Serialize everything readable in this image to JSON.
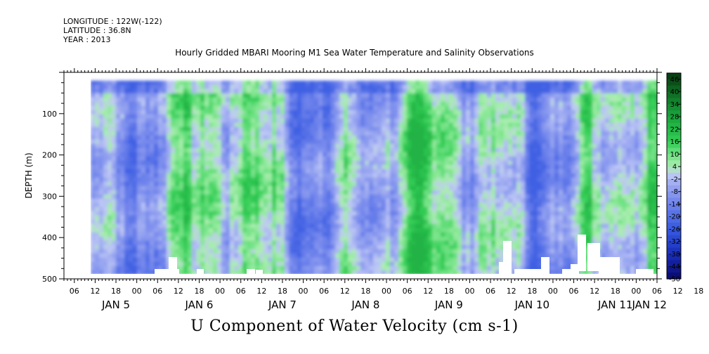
{
  "meta": {
    "longitude": "LONGITUDE : 122W(-122)",
    "latitude": "LATITUDE : 36.8N",
    "year": "YEAR : 2013"
  },
  "chart_data": {
    "type": "heatmap",
    "title": "Hourly Gridded MBARI Mooring M1 Sea Water Temperature and Salinity Observations",
    "xlabel": "U Component of Water Velocity (cm s-1)",
    "ylabel": "DEPTH (m)",
    "ylim": [
      500,
      0
    ],
    "yticks": [
      100,
      200,
      300,
      400,
      500
    ],
    "hour_ticks": [
      "06",
      "12",
      "18",
      "00",
      "06",
      "12",
      "18",
      "00",
      "06",
      "12",
      "18",
      "00",
      "06",
      "12",
      "18",
      "00",
      "06",
      "12",
      "18",
      "00",
      "06",
      "12",
      "18",
      "00",
      "06",
      "12",
      "18",
      "00",
      "06",
      "12",
      "18",
      "00"
    ],
    "date_labels": [
      "JAN 5",
      "JAN 6",
      "JAN 7",
      "JAN 8",
      "JAN 9",
      "JAN 10",
      "JAN 11",
      "JAN 12"
    ],
    "colorbar_labels": [
      "46",
      "40",
      "34",
      "28",
      "22",
      "16",
      "10",
      "4",
      "-2",
      "-8",
      "-14",
      "-20",
      "-26",
      "-32",
      "-38",
      "-44",
      "-50"
    ],
    "colorbar_range": [
      -50,
      49
    ],
    "data_depth_range": [
      20,
      488
    ],
    "colors": {
      "strong_positive": "#0a3d0a",
      "positive": "#22c84a",
      "weak_positive": "#8fe89c",
      "weak_negative": "#a9b4f0",
      "negative": "#6f84ea",
      "strong_negative": "#0a0a6e"
    }
  }
}
